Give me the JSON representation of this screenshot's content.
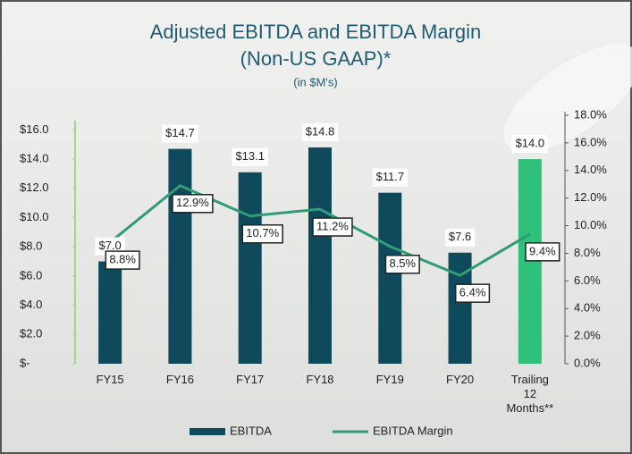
{
  "chart_data": {
    "type": "bar-line",
    "title": "Adjusted EBITDA and EBITDA Margin",
    "subtitle": "(Non-US GAAP)*",
    "units_note": "(in $M's)",
    "categories": [
      "FY15",
      "FY16",
      "FY17",
      "FY18",
      "FY19",
      "FY20",
      "Trailing\n12\nMonths**"
    ],
    "series": [
      {
        "name": "EBITDA",
        "color": "#0e4a5c",
        "colors": [
          "#0e4a5c",
          "#0e4a5c",
          "#0e4a5c",
          "#0e4a5c",
          "#0e4a5c",
          "#0e4a5c",
          "#2fc07a"
        ],
        "values": [
          7.0,
          14.7,
          13.1,
          14.8,
          11.7,
          7.6,
          14.0
        ],
        "value_labels": [
          "$7.0",
          "$14.7",
          "$13.1",
          "$14.8",
          "$11.7",
          "$7.6",
          "$14.0"
        ]
      },
      {
        "name": "EBITDA Margin",
        "color": "#2f9c76",
        "axis": "y2",
        "values": [
          8.8,
          12.9,
          10.7,
          11.2,
          8.5,
          6.4,
          9.4
        ],
        "value_labels": [
          "8.8%",
          "12.9%",
          "10.7%",
          "11.2%",
          "8.5%",
          "6.4%",
          "9.4%"
        ]
      }
    ],
    "ylim": [
      0,
      17
    ],
    "yticks": [
      {
        "value": 0,
        "label": "$-"
      },
      {
        "value": 2,
        "label": "$2.0"
      },
      {
        "value": 4,
        "label": "$4.0"
      },
      {
        "value": 6,
        "label": "$6.0"
      },
      {
        "value": 8,
        "label": "$8.0"
      },
      {
        "value": 10,
        "label": "$10.0"
      },
      {
        "value": 12,
        "label": "$12.0"
      },
      {
        "value": 14,
        "label": "$14.0"
      },
      {
        "value": 16,
        "label": "$16.0"
      }
    ],
    "y2lim": [
      0,
      18
    ],
    "y2ticks": [
      {
        "value": 0,
        "label": "0.0%"
      },
      {
        "value": 2,
        "label": "2.0%"
      },
      {
        "value": 4,
        "label": "4.0%"
      },
      {
        "value": 6,
        "label": "6.0%"
      },
      {
        "value": 8,
        "label": "8.0%"
      },
      {
        "value": 10,
        "label": "10.0%"
      },
      {
        "value": 12,
        "label": "12.0%"
      },
      {
        "value": 14,
        "label": "14.0%"
      },
      {
        "value": 16,
        "label": "16.0%"
      },
      {
        "value": 18,
        "label": "18.0%"
      }
    ],
    "legend": "bottom"
  }
}
